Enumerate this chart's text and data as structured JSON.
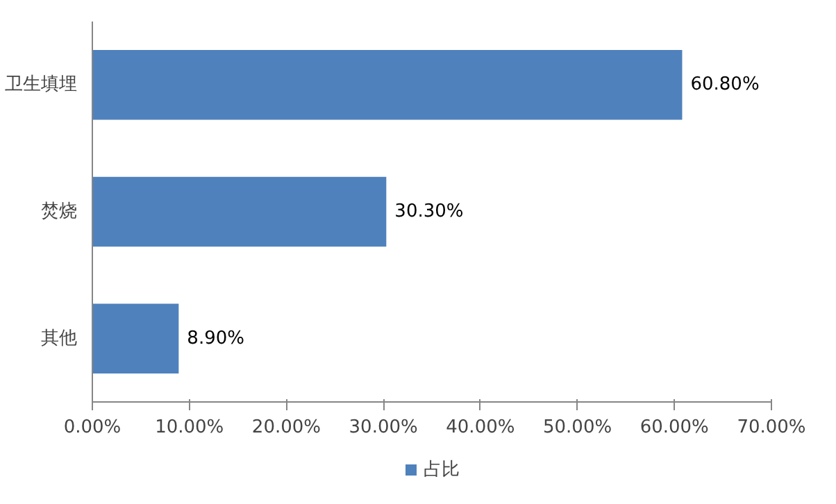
{
  "chart_data": {
    "type": "bar",
    "orientation": "horizontal",
    "categories": [
      "卫生填埋",
      "焚烧",
      "其他"
    ],
    "series": [
      {
        "name": "占比",
        "color": "#4f81bd",
        "values": [
          60.8,
          30.3,
          8.9
        ],
        "value_labels": [
          "60.80%",
          "30.30%",
          "8.90%"
        ]
      }
    ],
    "xlim": [
      0,
      70
    ],
    "xticks": [
      {
        "value": 0,
        "label": "0.00%"
      },
      {
        "value": 10,
        "label": "10.00%"
      },
      {
        "value": 20,
        "label": "20.00%"
      },
      {
        "value": 30,
        "label": "30.00%"
      },
      {
        "value": 40,
        "label": "40.00%"
      },
      {
        "value": 50,
        "label": "50.00%"
      },
      {
        "value": 60,
        "label": "60.00%"
      },
      {
        "value": 70,
        "label": "70.00%"
      }
    ],
    "grid": false,
    "legend": "bottom"
  }
}
